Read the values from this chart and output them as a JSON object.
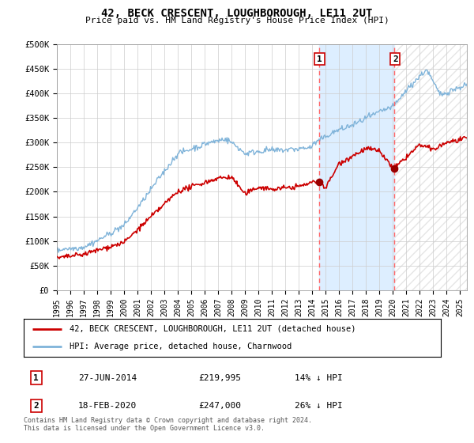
{
  "title": "42, BECK CRESCENT, LOUGHBOROUGH, LE11 2UT",
  "subtitle": "Price paid vs. HM Land Registry's House Price Index (HPI)",
  "ylabel_ticks": [
    "£0",
    "£50K",
    "£100K",
    "£150K",
    "£200K",
    "£250K",
    "£300K",
    "£350K",
    "£400K",
    "£450K",
    "£500K"
  ],
  "ytick_values": [
    0,
    50000,
    100000,
    150000,
    200000,
    250000,
    300000,
    350000,
    400000,
    450000,
    500000
  ],
  "ylim": [
    0,
    500000
  ],
  "xlim_start": 1995.0,
  "xlim_end": 2025.5,
  "hpi_color": "#7fb3d9",
  "price_color": "#cc0000",
  "highlight_bg": "#ddeeff",
  "vline_color": "#ff6666",
  "marker_color": "#990000",
  "purchase1_x": 2014.49,
  "purchase1_y": 219995,
  "purchase2_x": 2020.12,
  "purchase2_y": 247000,
  "legend_label1": "42, BECK CRESCENT, LOUGHBOROUGH, LE11 2UT (detached house)",
  "legend_label2": "HPI: Average price, detached house, Charnwood",
  "ann1_date": "27-JUN-2014",
  "ann1_price": "£219,995",
  "ann1_hpi": "14% ↓ HPI",
  "ann2_date": "18-FEB-2020",
  "ann2_price": "£247,000",
  "ann2_hpi": "26% ↓ HPI",
  "footer": "Contains HM Land Registry data © Crown copyright and database right 2024.\nThis data is licensed under the Open Government Licence v3.0.",
  "xtick_years": [
    1995,
    1996,
    1997,
    1998,
    1999,
    2000,
    2001,
    2002,
    2003,
    2004,
    2005,
    2006,
    2007,
    2008,
    2009,
    2010,
    2011,
    2012,
    2013,
    2014,
    2015,
    2016,
    2017,
    2018,
    2019,
    2020,
    2021,
    2022,
    2023,
    2024,
    2025
  ]
}
